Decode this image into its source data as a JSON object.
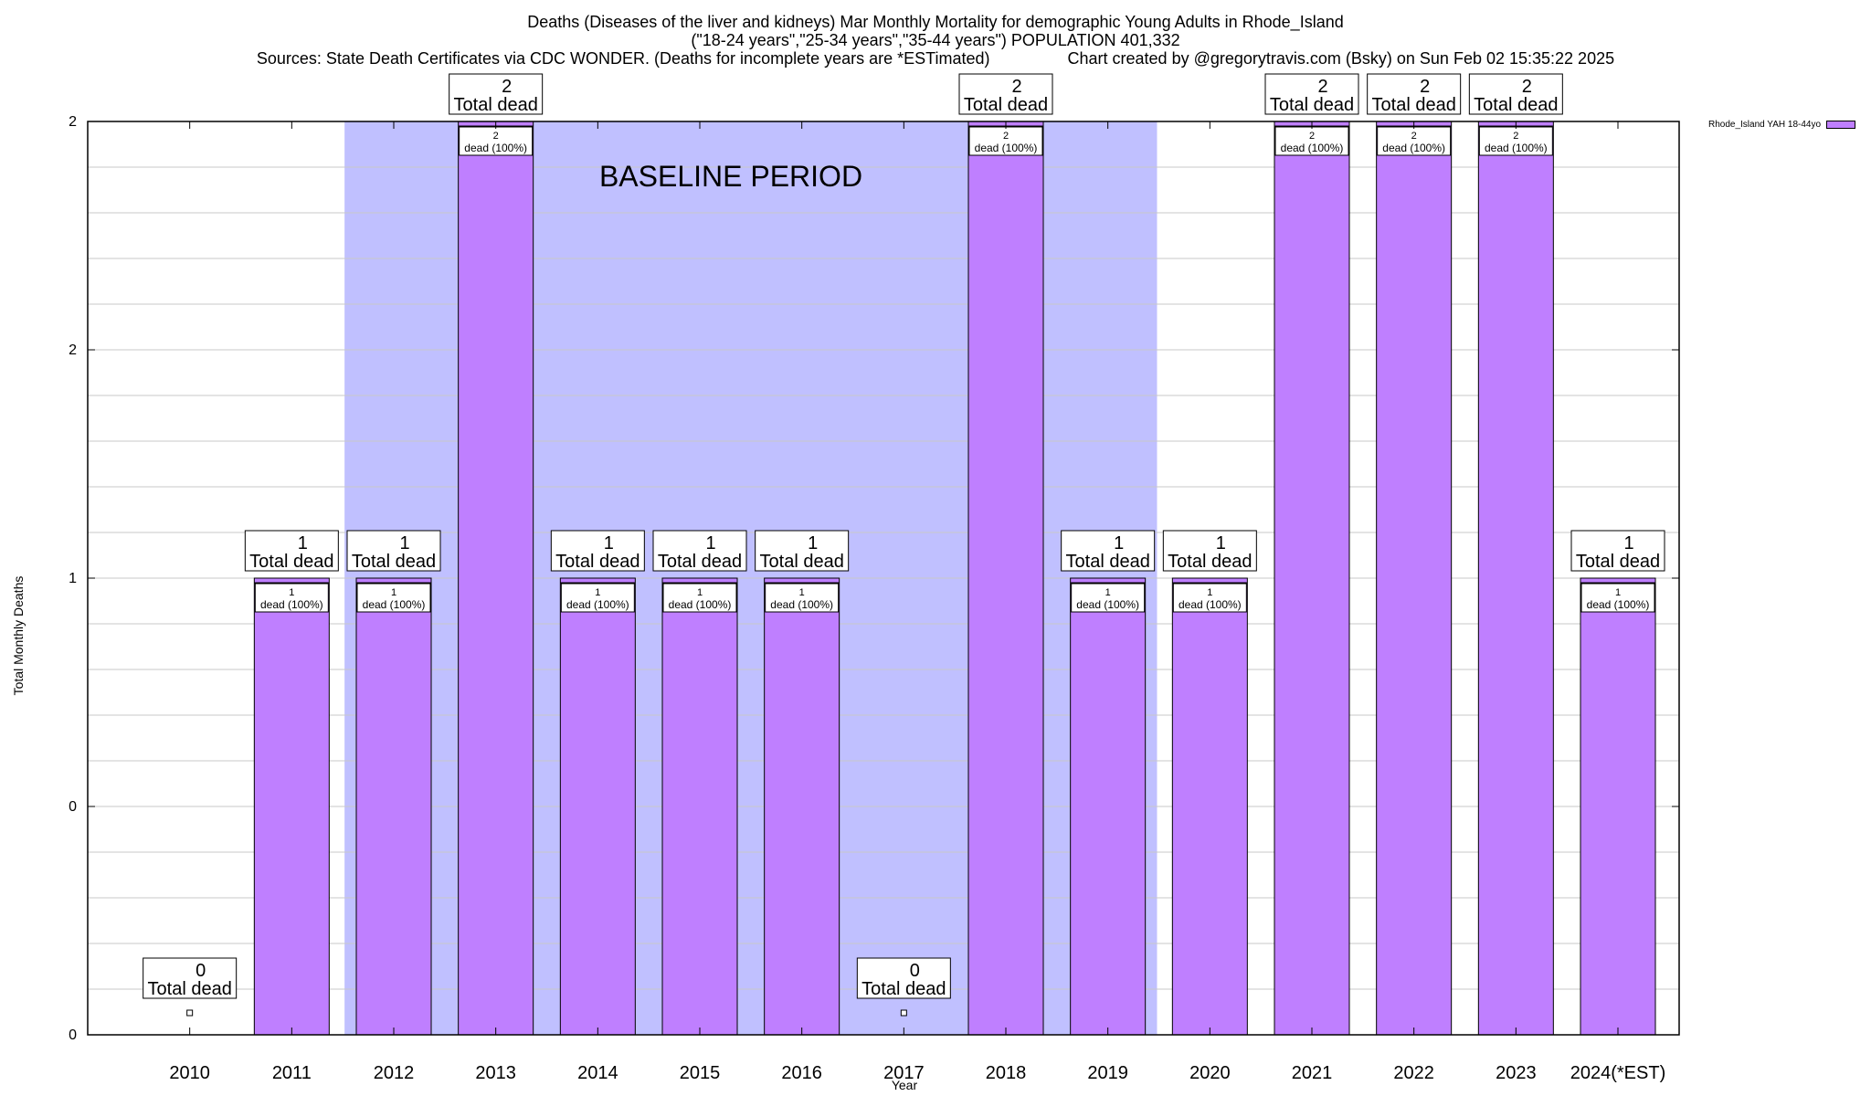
{
  "title_lines": [
    "Deaths (Diseases of the liver and kidneys) Mar Monthly Mortality for demographic Young Adults in Rhode_Island",
    "(\"18-24 years\",\"25-34 years\",\"35-44 years\") POPULATION 401,332",
    "Sources: State Death Certificates via CDC WONDER. (Deaths for incomplete years are *ESTimated)                 Chart created by @gregorytravis.com (Bsky) on Sun Feb 02 15:35:22 2025"
  ],
  "chart_data": {
    "type": "bar",
    "categories": [
      "2010",
      "2011",
      "2012",
      "2013",
      "2014",
      "2015",
      "2016",
      "2017",
      "2018",
      "2019",
      "2020",
      "2021",
      "2022",
      "2023",
      "2024(*EST)"
    ],
    "series": [
      {
        "name": "Rhode_Island YAH 18-44yo",
        "values": [
          0,
          1,
          1,
          2,
          1,
          1,
          1,
          0,
          2,
          1,
          1,
          2,
          2,
          2,
          1
        ]
      }
    ],
    "ylim": [
      0,
      2
    ],
    "ytick_labels": [
      "0",
      "0",
      "1",
      "2",
      "2"
    ],
    "xlabel": "Year",
    "ylabel": "Total Monthly Deaths",
    "total_label_suffix": "Total dead",
    "inner_label_suffix": "dead (100%)",
    "baseline": {
      "label": "BASELINE PERIOD",
      "from": "2012",
      "to": "2019"
    },
    "grid": true,
    "legend_position": "top-right",
    "colors": {
      "bar": "#bf7fff",
      "baseline": "#c0c0ff",
      "grid": "#c8c8c8"
    }
  }
}
